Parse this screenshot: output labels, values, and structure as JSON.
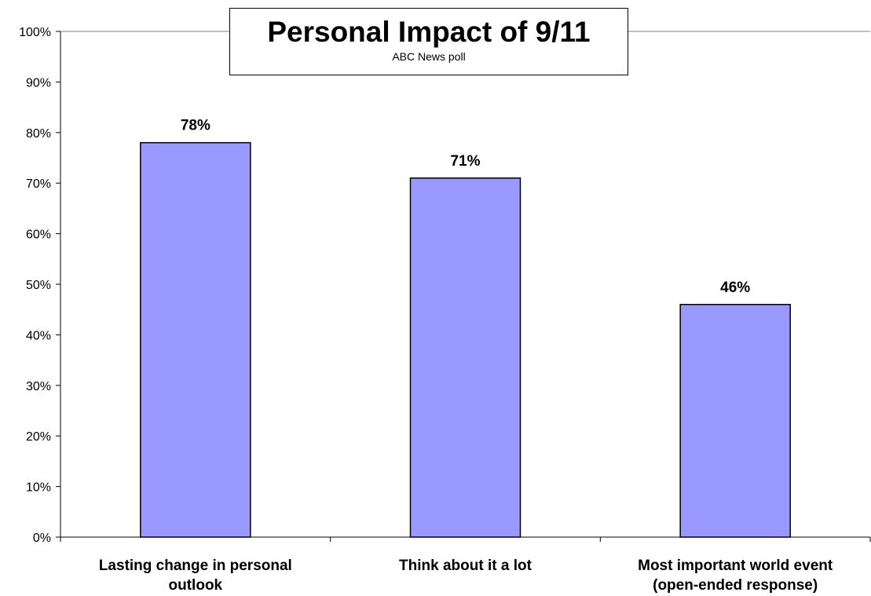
{
  "chart_data": {
    "type": "bar",
    "title": "Personal Impact of 9/11",
    "subtitle": "ABC News poll",
    "categories": [
      [
        "Lasting change in personal",
        "outlook"
      ],
      [
        "Think about it a lot"
      ],
      [
        "Most important world event",
        "(open-ended response)"
      ]
    ],
    "values": [
      78,
      71,
      46
    ],
    "data_labels": [
      "78%",
      "71%",
      "46%"
    ],
    "y_ticks": [
      "0%",
      "10%",
      "20%",
      "30%",
      "40%",
      "50%",
      "60%",
      "70%",
      "80%",
      "90%",
      "100%"
    ],
    "ylim": [
      0,
      100
    ],
    "grid": false,
    "legend": "none",
    "bar_color": "#9999ff",
    "bar_stroke": "#000000"
  }
}
